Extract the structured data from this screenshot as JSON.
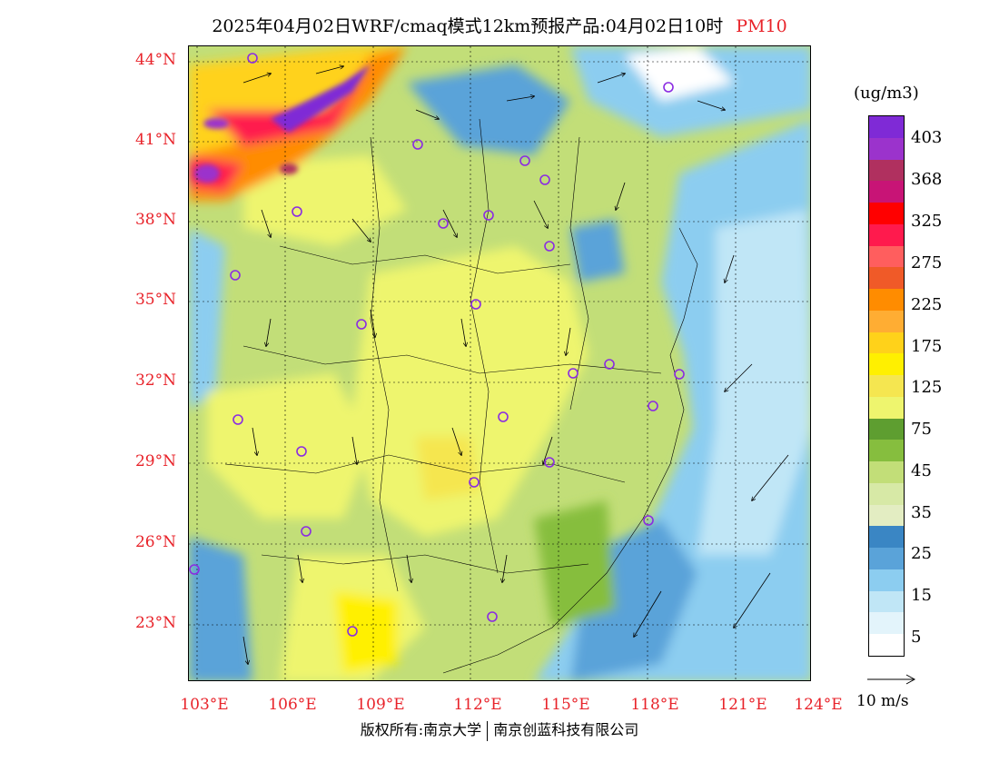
{
  "title": {
    "main": "2025年04月02日WRF/cmaq模式12km预报产品:04月02日10时",
    "species": "PM10",
    "species_color": "#e8232a"
  },
  "axes": {
    "lat_labels": [
      "44°N",
      "41°N",
      "38°N",
      "35°N",
      "32°N",
      "29°N",
      "26°N",
      "23°N"
    ],
    "lon_labels": [
      "103°E",
      "106°E",
      "109°E",
      "112°E",
      "115°E",
      "118°E",
      "121°E",
      "124°E"
    ],
    "label_color": "#e8232a"
  },
  "legend": {
    "unit": "(ug/m3)",
    "labels": [
      "403",
      "368",
      "325",
      "275",
      "225",
      "175",
      "125",
      "75",
      "45",
      "35",
      "25",
      "15",
      "5"
    ],
    "colors": [
      "#7f2ad6",
      "#9b33cc",
      "#b0305f",
      "#c81476",
      "#ff0000",
      "#ff1a4d",
      "#ff5e5e",
      "#f05a28",
      "#ff8c00",
      "#ffad33",
      "#ffd21a",
      "#fff000",
      "#f5e650",
      "#eef56e",
      "#5e9e30",
      "#86be3e",
      "#c2de78",
      "#d7e9a6",
      "#e3edc2",
      "#3a86c4",
      "#5aa3d9",
      "#8ccdf0",
      "#c0e6f6",
      "#e3f4fb",
      "#ffffff"
    ]
  },
  "wind_legend": {
    "label": "10 m/s"
  },
  "copyright": {
    "left": "版权所有:南京大学",
    "right": "南京创蓝科技有限公司"
  }
}
